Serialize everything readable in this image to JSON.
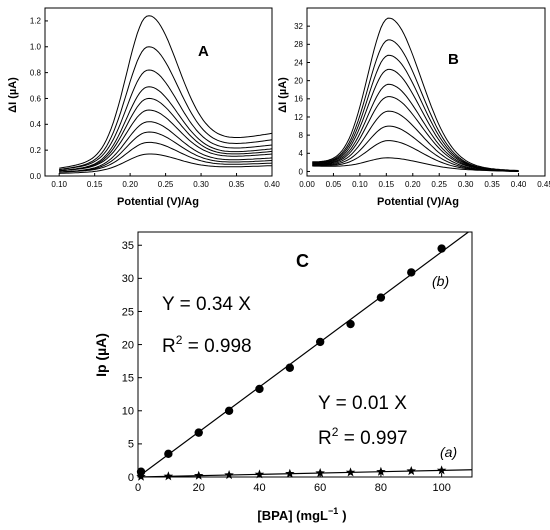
{
  "chart_data": [
    {
      "panel": "A",
      "type": "line",
      "xlabel": "Potential (V)/Ag",
      "ylabel": "ΔI (µA)",
      "xlim": [
        0.08,
        0.4
      ],
      "ylim": [
        0,
        1.3
      ],
      "xticks": [
        0.1,
        0.15,
        0.2,
        0.25,
        0.3,
        0.35,
        0.4
      ],
      "yticks": [
        0.0,
        0.2,
        0.4,
        0.6,
        0.8,
        1.0,
        1.2
      ],
      "x_decimals": 2,
      "y_decimals": 1,
      "curve_model": {
        "x_start": 0.1,
        "x_end": 0.4,
        "peak_x": 0.225,
        "sigma_left": 0.03,
        "sigma_right": 0.042
      },
      "series": [
        {
          "peak": 0.17,
          "start": 0.02,
          "end": 0.08
        },
        {
          "peak": 0.26,
          "start": 0.03,
          "end": 0.1
        },
        {
          "peak": 0.34,
          "start": 0.03,
          "end": 0.12
        },
        {
          "peak": 0.42,
          "start": 0.03,
          "end": 0.14
        },
        {
          "peak": 0.51,
          "start": 0.04,
          "end": 0.17
        },
        {
          "peak": 0.6,
          "start": 0.04,
          "end": 0.19
        },
        {
          "peak": 0.69,
          "start": 0.04,
          "end": 0.21
        },
        {
          "peak": 0.82,
          "start": 0.05,
          "end": 0.24
        },
        {
          "peak": 1.0,
          "start": 0.05,
          "end": 0.28
        },
        {
          "peak": 1.24,
          "start": 0.06,
          "end": 0.33
        }
      ]
    },
    {
      "panel": "B",
      "type": "line",
      "xlabel": "Potential (V)/Ag",
      "ylabel": "ΔI (µA)",
      "xlim": [
        0.0,
        0.45
      ],
      "ylim": [
        -1,
        36
      ],
      "xticks": [
        0.0,
        0.05,
        0.1,
        0.15,
        0.2,
        0.25,
        0.3,
        0.35,
        0.4,
        0.45
      ],
      "yticks": [
        0,
        4,
        8,
        12,
        16,
        20,
        24,
        28,
        32
      ],
      "x_decimals": 2,
      "y_decimals": 0,
      "curve_model": {
        "x_start": 0.01,
        "x_end": 0.4,
        "peak_x": 0.155,
        "sigma_left": 0.04,
        "sigma_right": 0.06
      },
      "series": [
        {
          "peak": 3.0,
          "start": 1.2,
          "end": 0.0
        },
        {
          "peak": 6.8,
          "start": 1.3,
          "end": 0.0
        },
        {
          "peak": 10.0,
          "start": 1.4,
          "end": 0.0
        },
        {
          "peak": 13.3,
          "start": 1.5,
          "end": 0.0
        },
        {
          "peak": 16.5,
          "start": 1.6,
          "end": 0.1
        },
        {
          "peak": 19.2,
          "start": 1.7,
          "end": 0.1
        },
        {
          "peak": 22.5,
          "start": 1.8,
          "end": 0.1
        },
        {
          "peak": 25.6,
          "start": 1.9,
          "end": 0.1
        },
        {
          "peak": 29.0,
          "start": 2.0,
          "end": 0.1
        },
        {
          "peak": 33.8,
          "start": 2.1,
          "end": 0.2
        }
      ]
    },
    {
      "panel": "C",
      "type": "scatter",
      "xlabel": "[BPA] (mgL",
      "xlabel_sup": "−1",
      "xlabel_end": ")",
      "ylabel": "Ip (µA)",
      "xlim": [
        0,
        110
      ],
      "ylim": [
        0,
        37
      ],
      "xticks": [
        0,
        20,
        40,
        60,
        80,
        100
      ],
      "yticks": [
        0,
        5,
        10,
        15,
        20,
        25,
        30,
        35
      ],
      "x_decimals": 0,
      "y_decimals": 0,
      "series": [
        {
          "label": "(b)",
          "marker": "circle",
          "x": [
            1,
            10,
            20,
            30,
            40,
            50,
            60,
            70,
            80,
            90,
            100
          ],
          "y": [
            0.8,
            3.5,
            6.7,
            10.0,
            13.3,
            16.5,
            20.4,
            23.1,
            27.1,
            30.9,
            34.5
          ],
          "fit": {
            "slope": 0.34,
            "intercept": 0.0
          },
          "equation": "Y = 0.34 X",
          "r2_prefix": "R",
          "r2_value": " = 0.998"
        },
        {
          "label": "(a)",
          "marker": "star",
          "x": [
            1,
            10,
            20,
            30,
            40,
            50,
            60,
            70,
            80,
            90,
            100
          ],
          "y": [
            0.05,
            0.1,
            0.2,
            0.3,
            0.4,
            0.5,
            0.6,
            0.7,
            0.8,
            0.9,
            1.0
          ],
          "fit": {
            "slope": 0.01,
            "intercept": 0.0
          },
          "equation": "Y = 0.01 X",
          "r2_prefix": "R",
          "r2_value": " = 0.997"
        }
      ]
    }
  ],
  "labels": {
    "a_title": "A",
    "b_title": "B",
    "c_title": "C",
    "r2_sup": "2"
  }
}
